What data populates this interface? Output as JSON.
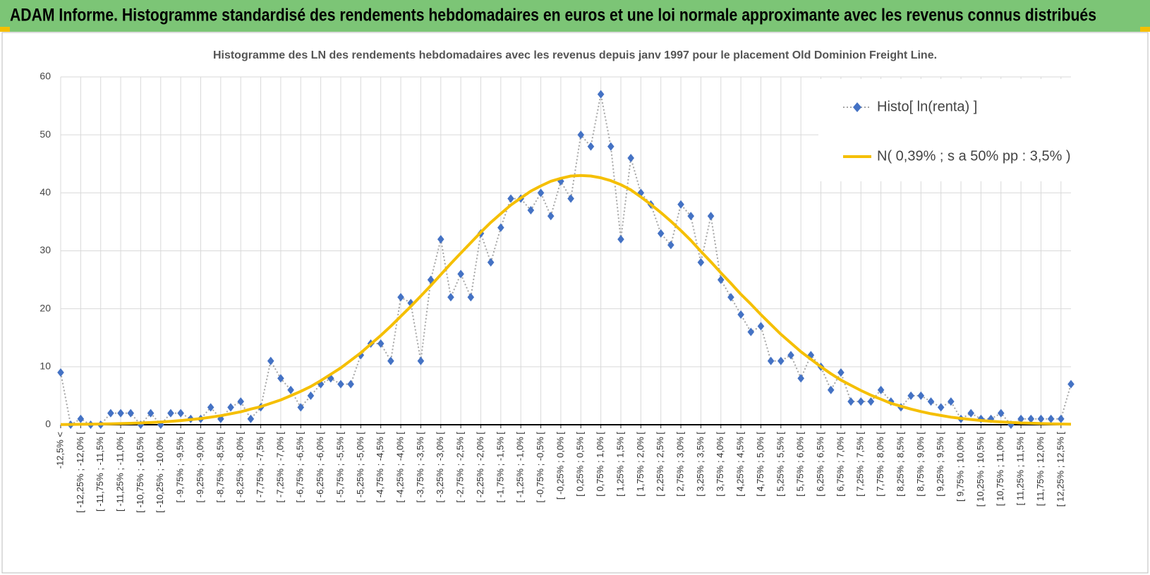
{
  "chart_data": {
    "type": "line",
    "title": "ADAM Informe. Histogramme standardisé des rendements hebdomadaires en euros et une loi normale approximante avec les revenus connus distribués",
    "subtitle": "Histogramme des LN des rendements hebdomadaires avec les revenus depuis janv 1997 pour le placement Old Dominion Freight Line.",
    "categories": [
      "-12,5% <",
      null,
      "[ -12,25% ; -12,0% [",
      null,
      "[ -11,75% ; -11,5% [",
      null,
      "[ -11,25% ; -11,0% [",
      null,
      "[ -10,75% ; -10,5% [",
      null,
      "[ -10,25% ; -10,0% [",
      null,
      "[ -9,75% ; -9,5% [",
      null,
      "[ -9,25% ; -9,0% [",
      null,
      "[ -8,75% ; -8,5% [",
      null,
      "[ -8,25% ; -8,0% [",
      null,
      "[ -7,75% ; -7,5% [",
      null,
      "[ -7,25% ; -7,0% [",
      null,
      "[ -6,75% ; -6,5% [",
      null,
      "[ -6,25% ; -6,0% [",
      null,
      "[ -5,75% ; -5,5% [",
      null,
      "[ -5,25% ; -5,0% [",
      null,
      "[ -4,75% ; -4,5% [",
      null,
      "[ -4,25% ; -4,0% [",
      null,
      "[ -3,75% ; -3,5% [",
      null,
      "[ -3,25% ; -3,0% [",
      null,
      "[ -2,75% ; -2,5% [",
      null,
      "[ -2,25% ; -2,0% [",
      null,
      "[ -1,75% ; -1,5% [",
      null,
      "[ -1,25% ; -1,0% [",
      null,
      "[ -0,75% ; -0,5% [",
      null,
      "[ -0,25% ; 0,0% [",
      null,
      "[ 0,25% ; 0,5% [",
      null,
      "[ 0,75% ; 1,0% [",
      null,
      "[ 1,25% ; 1,5% [",
      null,
      "[ 1,75% ; 2,0% [",
      null,
      "[ 2,25% ; 2,5% [",
      null,
      "[ 2,75% ; 3,0% [",
      null,
      "[ 3,25% ; 3,5% [",
      null,
      "[ 3,75% ; 4,0% [",
      null,
      "[ 4,25% ; 4,5% [",
      null,
      "[ 4,75% ; 5,0% [",
      null,
      "[ 5,25% ; 5,5% [",
      null,
      "[ 5,75% ; 6,0% [",
      null,
      "[ 6,25% ; 6,5% [",
      null,
      "[ 6,75% ; 7,0% [",
      null,
      "[ 7,25% ; 7,5% [",
      null,
      "[ 7,75% ; 8,0% [",
      null,
      "[ 8,25% ; 8,5% [",
      null,
      "[ 8,75% ; 9,0% [",
      null,
      "[ 9,25% ; 9,5% [",
      null,
      "[ 9,75% ; 10,0% [",
      null,
      "[ 10,25% ; 10,5% [",
      null,
      "[ 10,75% ; 11,0% [",
      null,
      "[ 11,25% ; 11,5% [",
      null,
      "[ 11,75% ; 12,0% [",
      null,
      "[ 12,25% ; 12,5% [",
      null
    ],
    "series": [
      {
        "name": "Histo[ ln(renta) ]",
        "color": "#4472c4",
        "marker": "diamond",
        "line": "dotted",
        "values": [
          9,
          0,
          1,
          0,
          0,
          2,
          2,
          2,
          0,
          2,
          0,
          2,
          2,
          1,
          1,
          3,
          1,
          3,
          4,
          1,
          3,
          11,
          8,
          6,
          3,
          5,
          7,
          8,
          7,
          7,
          12,
          14,
          14,
          11,
          22,
          21,
          11,
          25,
          32,
          22,
          26,
          22,
          33,
          28,
          34,
          39,
          39,
          37,
          40,
          36,
          42,
          39,
          50,
          48,
          57,
          48,
          32,
          46,
          40,
          38,
          33,
          31,
          38,
          36,
          28,
          36,
          25,
          22,
          19,
          16,
          17,
          11,
          11,
          12,
          8,
          12,
          10,
          6,
          9,
          4,
          4,
          4,
          6,
          4,
          3,
          5,
          5,
          4,
          3,
          4,
          1,
          2,
          1,
          1,
          2,
          0,
          1,
          1,
          1,
          1,
          1,
          7
        ]
      },
      {
        "name": "N( 0,39% ; s a 50% pp : 3,5% )",
        "color": "#f5bf00",
        "marker": "none",
        "line": "solid",
        "values": [
          0.04,
          0.05,
          0.07,
          0.09,
          0.12,
          0.15,
          0.19,
          0.24,
          0.3,
          0.38,
          0.47,
          0.58,
          0.72,
          0.88,
          1.06,
          1.3,
          1.56,
          1.9,
          2.23,
          2.7,
          3.12,
          3.7,
          4.27,
          5.0,
          5.76,
          6.6,
          7.6,
          8.7,
          9.8,
          11.1,
          12.4,
          13.9,
          15.4,
          17.0,
          18.7,
          20.4,
          22.2,
          24.0,
          25.9,
          27.8,
          29.6,
          31.4,
          33.2,
          34.9,
          36.4,
          37.9,
          39.1,
          40.3,
          41.2,
          42.0,
          42.5,
          42.9,
          43.0,
          42.9,
          42.6,
          42.1,
          41.4,
          40.5,
          39.3,
          38.0,
          36.6,
          35.1,
          33.5,
          31.8,
          29.9,
          28.1,
          26.2,
          24.4,
          22.5,
          20.8,
          19.0,
          17.3,
          15.6,
          14.1,
          12.6,
          11.3,
          10.0,
          8.8,
          7.7,
          6.8,
          5.9,
          5.1,
          4.4,
          3.7,
          3.19,
          2.7,
          2.28,
          1.9,
          1.6,
          1.3,
          1.1,
          0.9,
          0.73,
          0.6,
          0.49,
          0.4,
          0.31,
          0.25,
          0.2,
          0.16,
          0.12,
          0.09
        ]
      }
    ],
    "ylim": [
      0,
      60
    ],
    "yticks": [
      0,
      10,
      20,
      30,
      40,
      50,
      60
    ],
    "grid": true,
    "legend": "top-right"
  }
}
